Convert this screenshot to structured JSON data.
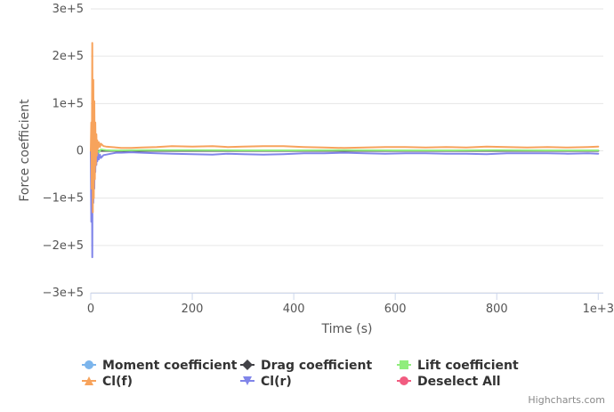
{
  "chart_data": {
    "type": "line",
    "title": "",
    "xlabel": "Time (s)",
    "ylabel": "Force coefficient",
    "xlim": [
      0,
      1010
    ],
    "ylim": [
      -300000,
      300000
    ],
    "x_ticks": [
      0,
      200,
      400,
      600,
      800,
      1000
    ],
    "x_tick_labels": [
      "0",
      "200",
      "400",
      "600",
      "800",
      "1e+3"
    ],
    "y_ticks": [
      300000,
      200000,
      100000,
      0,
      -100000,
      -200000,
      -300000
    ],
    "y_tick_labels": [
      "3e+5",
      "2e+5",
      "1e+5",
      "0",
      "−1e+5",
      "−2e+5",
      "−3e+5"
    ],
    "grid": true,
    "legend_position": "bottom",
    "series": [
      {
        "name": "Cl(f)",
        "color": "#f7a35c",
        "x": [
          0,
          1,
          2,
          3,
          4,
          5,
          6,
          7,
          8,
          9,
          10,
          11,
          12,
          13,
          14,
          16,
          18,
          20,
          25,
          30,
          40,
          50,
          60,
          80,
          100,
          130,
          160,
          200,
          240,
          270,
          300,
          340,
          380,
          420,
          460,
          500,
          540,
          580,
          620,
          660,
          700,
          740,
          780,
          820,
          860,
          900,
          940,
          980,
          1000
        ],
        "y": [
          0,
          60000,
          -80000,
          228000,
          -130000,
          150000,
          -100000,
          105000,
          -60000,
          60000,
          -30000,
          35000,
          -10000,
          22000,
          5000,
          18000,
          8000,
          15000,
          10000,
          9000,
          8000,
          7000,
          6000,
          6000,
          7000,
          8000,
          10000,
          9000,
          10000,
          8000,
          9000,
          10000,
          10000,
          8000,
          7000,
          6000,
          7000,
          8000,
          8000,
          7000,
          8000,
          7000,
          9000,
          8000,
          7000,
          8000,
          7000,
          8000,
          9000
        ]
      },
      {
        "name": "Cl(r)",
        "color": "#8085e9",
        "x": [
          0,
          1,
          2,
          3,
          4,
          5,
          6,
          7,
          8,
          9,
          10,
          11,
          12,
          13,
          14,
          16,
          18,
          20,
          25,
          30,
          40,
          50,
          60,
          80,
          100,
          130,
          160,
          200,
          240,
          270,
          300,
          340,
          380,
          420,
          460,
          500,
          540,
          580,
          620,
          660,
          700,
          740,
          780,
          820,
          860,
          900,
          940,
          980,
          1000
        ],
        "y": [
          0,
          -150000,
          60000,
          -225000,
          140000,
          -110000,
          80000,
          -80000,
          45000,
          -45000,
          25000,
          -30000,
          10000,
          -22000,
          -5000,
          -18000,
          -8000,
          -15000,
          -9000,
          -8000,
          -6000,
          -4000,
          -4000,
          -3000,
          -4000,
          -5000,
          -6000,
          -7000,
          -8000,
          -6000,
          -7000,
          -8000,
          -7000,
          -5000,
          -5000,
          -4000,
          -5000,
          -6000,
          -5000,
          -5000,
          -6000,
          -6000,
          -7000,
          -5000,
          -5000,
          -5000,
          -6000,
          -5000,
          -6000
        ]
      },
      {
        "name": "Lift coefficient",
        "color": "#90ed7d",
        "x": [
          0,
          5,
          10,
          15,
          20,
          25,
          30,
          40,
          60,
          100,
          200,
          300,
          400,
          500,
          600,
          700,
          800,
          900,
          1000
        ],
        "y": [
          0,
          -20000,
          10000,
          -5000,
          3000,
          2000,
          1500,
          1000,
          1000,
          1500,
          1500,
          1000,
          1000,
          1500,
          1000,
          1000,
          1500,
          1000,
          1000
        ]
      },
      {
        "name": "Moment coefficient",
        "color": "#7cb5ec",
        "x": [
          0,
          1000
        ],
        "y": [
          0,
          0
        ]
      },
      {
        "name": "Drag coefficient",
        "color": "#434348",
        "x": [
          0,
          1000
        ],
        "y": [
          0,
          0
        ]
      }
    ]
  },
  "legend": [
    {
      "label": "Moment coefficient",
      "color": "#7cb5ec",
      "marker": "circle"
    },
    {
      "label": "Drag coefficient",
      "color": "#434348",
      "marker": "diamond"
    },
    {
      "label": "Lift coefficient",
      "color": "#90ed7d",
      "marker": "square"
    },
    {
      "label": "Cl(f)",
      "color": "#f7a35c",
      "marker": "triangle"
    },
    {
      "label": "Cl(r)",
      "color": "#8085e9",
      "marker": "triangle-down"
    },
    {
      "label": "Deselect All",
      "color": "#f15c80",
      "marker": "circle"
    }
  ],
  "credits": "Highcharts.com"
}
